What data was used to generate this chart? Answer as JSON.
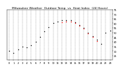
{
  "title": "Milwaukee Weather  Outdoor Temp  vs  Heat Index  (24 Hours)",
  "title_fontsize": 3.2,
  "background_color": "#ffffff",
  "grid_color": "#888888",
  "hours": [
    0,
    1,
    2,
    3,
    4,
    5,
    6,
    7,
    8,
    9,
    10,
    11,
    12,
    13,
    14,
    15,
    16,
    17,
    18,
    19,
    20,
    21,
    22,
    23
  ],
  "temp": [
    30,
    28,
    32,
    35,
    34,
    36,
    40,
    45,
    51,
    56,
    60,
    62,
    63,
    63,
    63,
    61,
    58,
    55,
    50,
    46,
    42,
    38,
    50,
    52
  ],
  "heat_index": [
    null,
    null,
    null,
    null,
    null,
    null,
    null,
    null,
    null,
    null,
    null,
    null,
    61,
    62,
    62,
    60,
    57,
    54,
    49,
    45,
    41,
    null,
    null,
    null
  ],
  "temp_color": "#000000",
  "heat_color": "#ff0000",
  "orange_color": "#ff8800",
  "ylim_min": 20,
  "ylim_max": 75,
  "ytick_values": [
    25,
    30,
    35,
    40,
    45,
    50,
    55,
    60,
    65,
    70,
    75
  ],
  "ytick_fontsize": 2.5,
  "xtick_fontsize": 2.5,
  "marker_size": 1.0,
  "dpi": 100
}
